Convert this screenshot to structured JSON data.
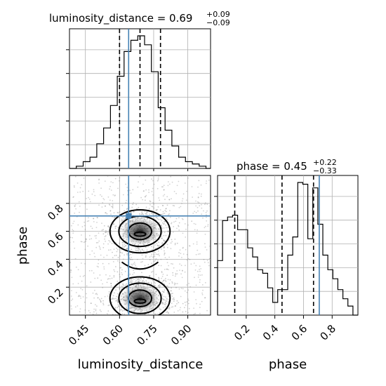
{
  "chart_data": {
    "type": "corner",
    "params": [
      "luminosity_distance",
      "phase"
    ],
    "truth": {
      "luminosity_distance": 0.64,
      "phase": 0.71
    },
    "titles": [
      {
        "name": "luminosity_distance",
        "text": "luminosity_distance = 0.69",
        "median": 0.69,
        "plus": "+0.09",
        "minus": "−0.09"
      },
      {
        "name": "phase",
        "text": "phase = 0.45",
        "median": 0.45,
        "plus": "+0.22",
        "minus": "−0.33"
      }
    ],
    "hist_luminosity_distance": {
      "xlim": [
        0.38,
        1.0
      ],
      "bin_edges": [
        0.38,
        0.41,
        0.44,
        0.47,
        0.5,
        0.53,
        0.56,
        0.59,
        0.62,
        0.65,
        0.68,
        0.71,
        0.74,
        0.77,
        0.8,
        0.83,
        0.86,
        0.89,
        0.92,
        0.95,
        0.98,
        1.0
      ],
      "counts": [
        0,
        1,
        3,
        5,
        11,
        18,
        28,
        41,
        52,
        57,
        59,
        55,
        43,
        27,
        17,
        10,
        5,
        3,
        2,
        1,
        0
      ],
      "quantiles": [
        0.6,
        0.69,
        0.78
      ]
    },
    "hist_phase": {
      "xlim": [
        0.0,
        0.98
      ],
      "bin_edges": [
        0.0,
        0.035,
        0.07,
        0.105,
        0.14,
        0.175,
        0.21,
        0.245,
        0.28,
        0.315,
        0.35,
        0.385,
        0.42,
        0.455,
        0.49,
        0.525,
        0.56,
        0.595,
        0.63,
        0.665,
        0.7,
        0.735,
        0.77,
        0.805,
        0.84,
        0.875,
        0.91,
        0.945,
        0.98
      ],
      "counts": [
        30,
        52,
        54,
        55,
        47,
        47,
        37,
        32,
        25,
        23,
        15,
        7,
        14,
        14,
        33,
        43,
        73,
        72,
        42,
        70,
        50,
        33,
        25,
        20,
        14,
        9,
        5,
        0
      ],
      "quantiles": [
        0.12,
        0.45,
        0.67
      ]
    },
    "scatter2d": {
      "xlabel": "luminosity_distance",
      "ylabel": "phase",
      "xlim": [
        0.38,
        1.0
      ],
      "ylim": [
        0.0,
        1.0
      ],
      "xticks": [
        "0.45",
        "0.60",
        "0.75",
        "0.90"
      ],
      "xtick_values": [
        0.45,
        0.6,
        0.75,
        0.9
      ],
      "yticks": [
        "0.2",
        "0.4",
        "0.6",
        "0.8"
      ],
      "ytick_values": [
        0.2,
        0.4,
        0.6,
        0.8
      ],
      "modes": [
        {
          "cx": 0.69,
          "cy": 0.6,
          "sx": 0.06,
          "sy": 0.07
        },
        {
          "cx": 0.69,
          "cy": 0.12,
          "sx": 0.06,
          "sy": 0.07
        }
      ]
    },
    "phase_axis": {
      "xlabel": "phase",
      "xlim": [
        0.0,
        0.98
      ],
      "xticks": [
        "0.2",
        "0.4",
        "0.6",
        "0.8"
      ],
      "xtick_values": [
        0.2,
        0.4,
        0.6,
        0.8
      ]
    },
    "colors": {
      "truth": "#4682b4",
      "hist": "#000000",
      "grid": "#b0b0b0",
      "scatter": "#808080"
    }
  }
}
